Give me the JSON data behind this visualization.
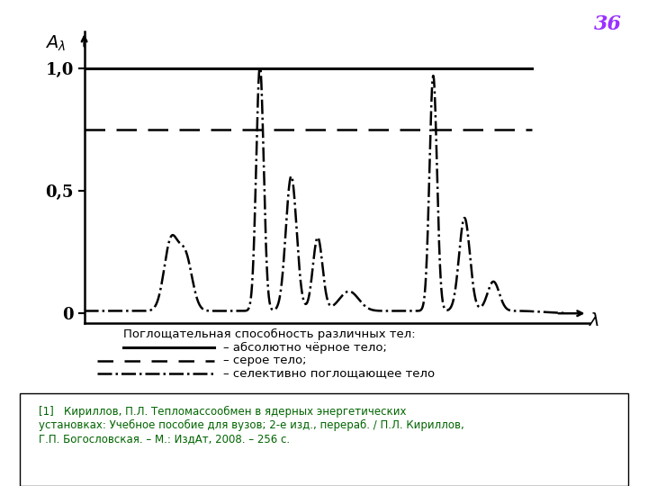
{
  "title_number": "36",
  "title_number_color": "#9B30FF",
  "y_tick_labels": [
    "0",
    "0,5",
    "1,0"
  ],
  "black_body_level": 1.0,
  "grey_body_level": 0.75,
  "bg_color": "#ffffff",
  "line_color": "#000000",
  "legend_title": "Поглощательная способность различных тел:",
  "legend_line1": "– абсолютно чёрное тело;",
  "legend_line2": "– серое тело;",
  "legend_line3": "– селективно поглощающее тело",
  "ref_line1": "[1]   Кириллов, П.Л. Тепломассообмен в ядерных энергетических",
  "ref_line2": "установках: Учебное пособие для вузов; 2-е изд., перераб. / П.Л. Кириллов,",
  "ref_line3": "Г.П. Богословская. – М.: ИздАт, 2008. – 256 с."
}
